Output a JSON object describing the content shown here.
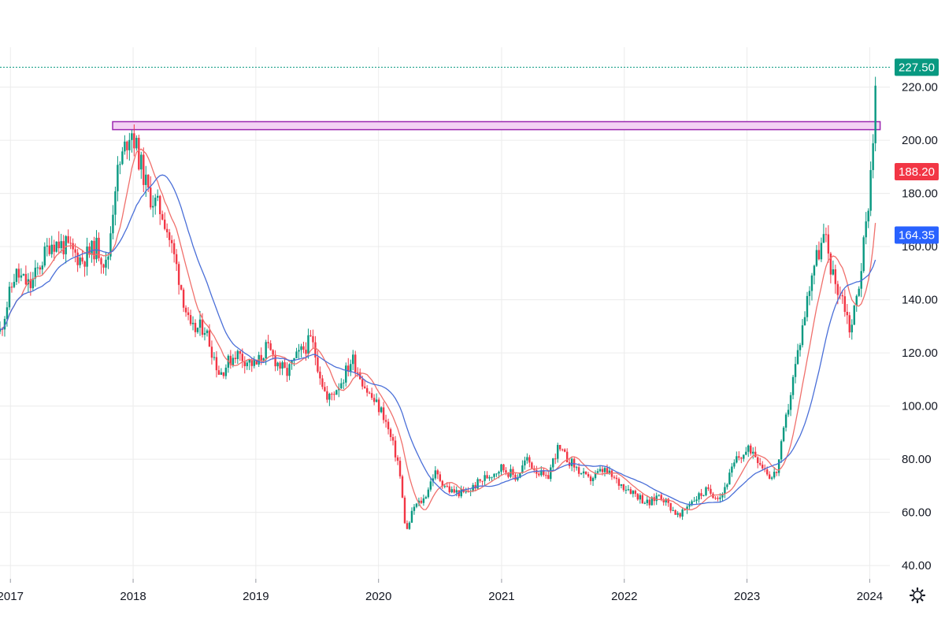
{
  "chart_data": {
    "type": "candlestick",
    "x_range": [
      "2016-12-01",
      "2024-03-01"
    ],
    "ylim": [
      35,
      235
    ],
    "grid": true,
    "x_ticks": [
      {
        "date": "2017-01-01",
        "label": "2017"
      },
      {
        "date": "2018-01-01",
        "label": "2018"
      },
      {
        "date": "2019-01-01",
        "label": "2019"
      },
      {
        "date": "2020-01-01",
        "label": "2020"
      },
      {
        "date": "2021-01-01",
        "label": "2021"
      },
      {
        "date": "2022-01-01",
        "label": "2022"
      },
      {
        "date": "2023-01-01",
        "label": "2023"
      },
      {
        "date": "2024-01-01",
        "label": "2024"
      }
    ],
    "y_ticks": [
      {
        "value": 220,
        "label": "220.00"
      },
      {
        "value": 200,
        "label": "200.00"
      },
      {
        "value": 180,
        "label": "180.00"
      },
      {
        "value": 160,
        "label": "160.00"
      },
      {
        "value": 140,
        "label": "140.00"
      },
      {
        "value": 120,
        "label": "120.00"
      },
      {
        "value": 100,
        "label": "100.00"
      },
      {
        "value": 80,
        "label": "80.00"
      },
      {
        "value": 60,
        "label": "60.00"
      },
      {
        "value": 40,
        "label": "40.00"
      }
    ],
    "price_path": [
      [
        "2016-12-01",
        128
      ],
      [
        "2017-01-15",
        150
      ],
      [
        "2017-03-01",
        145
      ],
      [
        "2017-05-01",
        162
      ],
      [
        "2017-06-15",
        160
      ],
      [
        "2017-08-01",
        155
      ],
      [
        "2017-09-15",
        160
      ],
      [
        "2017-10-15",
        152
      ],
      [
        "2017-11-10",
        185
      ],
      [
        "2017-12-25",
        205
      ],
      [
        "2018-02-15",
        180
      ],
      [
        "2018-04-01",
        172
      ],
      [
        "2018-05-15",
        150
      ],
      [
        "2018-06-20",
        128
      ],
      [
        "2018-08-01",
        130
      ],
      [
        "2018-09-15",
        112
      ],
      [
        "2018-11-01",
        120
      ],
      [
        "2019-01-01",
        115
      ],
      [
        "2019-02-01",
        122
      ],
      [
        "2019-04-01",
        112
      ],
      [
        "2019-05-01",
        118
      ],
      [
        "2019-06-15",
        125
      ],
      [
        "2019-08-01",
        102
      ],
      [
        "2019-09-15",
        110
      ],
      [
        "2019-10-15",
        118
      ],
      [
        "2019-12-01",
        105
      ],
      [
        "2020-01-15",
        97
      ],
      [
        "2020-03-01",
        78
      ],
      [
        "2020-03-23",
        52
      ],
      [
        "2020-04-15",
        62
      ],
      [
        "2020-05-15",
        65
      ],
      [
        "2020-06-15",
        75
      ],
      [
        "2020-08-01",
        68
      ],
      [
        "2020-09-15",
        67
      ],
      [
        "2020-11-01",
        72
      ],
      [
        "2021-01-01",
        77
      ],
      [
        "2021-02-15",
        73
      ],
      [
        "2021-03-15",
        80
      ],
      [
        "2021-05-15",
        72
      ],
      [
        "2021-06-15",
        84
      ],
      [
        "2021-08-01",
        78
      ],
      [
        "2021-09-15",
        72
      ],
      [
        "2021-11-01",
        76
      ],
      [
        "2021-12-15",
        71
      ],
      [
        "2022-01-15",
        69
      ],
      [
        "2022-03-15",
        63
      ],
      [
        "2022-04-15",
        67
      ],
      [
        "2022-06-15",
        58
      ],
      [
        "2022-07-15",
        64
      ],
      [
        "2022-09-01",
        68
      ],
      [
        "2022-10-15",
        66
      ],
      [
        "2022-12-01",
        80
      ],
      [
        "2023-01-15",
        84
      ],
      [
        "2023-02-15",
        78
      ],
      [
        "2023-03-15",
        73
      ],
      [
        "2023-04-01",
        76
      ],
      [
        "2023-05-01",
        98
      ],
      [
        "2023-06-15",
        130
      ],
      [
        "2023-07-15",
        152
      ],
      [
        "2023-08-20",
        164
      ],
      [
        "2023-09-15",
        148
      ],
      [
        "2023-10-15",
        140
      ],
      [
        "2023-11-05",
        128
      ],
      [
        "2023-12-01",
        147
      ],
      [
        "2023-12-25",
        172
      ],
      [
        "2024-01-10",
        200
      ],
      [
        "2024-01-22",
        227.5
      ]
    ],
    "resistance_zone": {
      "from": "2017-11-01",
      "to": "2024-02-01",
      "low": 204,
      "high": 207
    },
    "last_price": 227.5,
    "overlays": [
      {
        "kind": "price",
        "value": 227.5,
        "label": "227.50",
        "color": "#089981"
      },
      {
        "kind": "ma_fast",
        "value": 188.2,
        "label": "188.20",
        "color": "#f23645"
      },
      {
        "kind": "ma_slow",
        "value": 164.35,
        "label": "164.35",
        "color": "#2962ff"
      }
    ],
    "colors": {
      "up": "#089981",
      "down": "#f23645",
      "ma_fast": "#f0706c",
      "ma_slow": "#4a6fd8",
      "zone_fill": "#f3d2f4",
      "zone_stroke": "#9c27b0",
      "grid": "#ececec",
      "axis_text": "#131722"
    }
  },
  "settings_icon": "gear-icon"
}
